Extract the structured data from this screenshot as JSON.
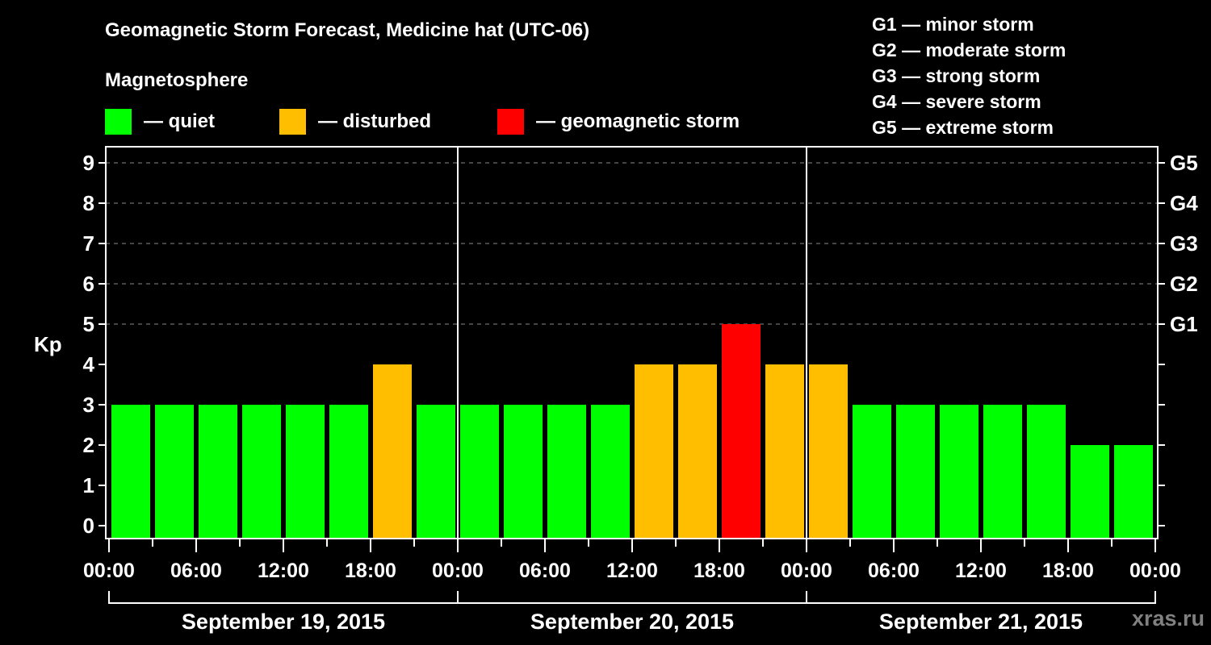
{
  "header": {
    "title": "Geomagnetic Storm Forecast, Medicine hat (UTC-06)",
    "subtitle": "Magnetosphere"
  },
  "legend": {
    "items": [
      {
        "label": "— quiet",
        "color": "#00ff00"
      },
      {
        "label": "— disturbed",
        "color": "#ffbf00"
      },
      {
        "label": "— geomagnetic storm",
        "color": "#ff0000"
      }
    ]
  },
  "storm_scale": [
    "G1 — minor storm",
    "G2 — moderate storm",
    "G3 — strong storm",
    "G4 — severe storm",
    "G5 — extreme storm"
  ],
  "watermark": "xras.ru",
  "chart_data": {
    "type": "bar",
    "title": "Geomagnetic Storm Forecast, Medicine hat (UTC-06)",
    "subtitle": "Magnetosphere",
    "xlabel": "",
    "ylabel": "Kp",
    "ylim": [
      0,
      9
    ],
    "yticks": [
      0,
      1,
      2,
      3,
      4,
      5,
      6,
      7,
      8,
      9
    ],
    "y2_ticks": [
      {
        "kp": 5,
        "label": "G1"
      },
      {
        "kp": 6,
        "label": "G2"
      },
      {
        "kp": 7,
        "label": "G3"
      },
      {
        "kp": 8,
        "label": "G4"
      },
      {
        "kp": 9,
        "label": "G5"
      }
    ],
    "grid": {
      "horizontal_dashed_at": [
        5,
        6,
        7,
        8,
        9
      ]
    },
    "interval_hours": 3,
    "days": [
      "September 19, 2015",
      "September 20, 2015",
      "September 21, 2015"
    ],
    "x_tick_labels": [
      "00:00",
      "06:00",
      "12:00",
      "18:00",
      "00:00",
      "06:00",
      "12:00",
      "18:00",
      "00:00",
      "06:00",
      "12:00",
      "18:00",
      "00:00"
    ],
    "categories": [
      "Sep 19 00:00",
      "Sep 19 03:00",
      "Sep 19 06:00",
      "Sep 19 09:00",
      "Sep 19 12:00",
      "Sep 19 15:00",
      "Sep 19 18:00",
      "Sep 19 21:00",
      "Sep 20 00:00",
      "Sep 20 03:00",
      "Sep 20 06:00",
      "Sep 20 09:00",
      "Sep 20 12:00",
      "Sep 20 15:00",
      "Sep 20 18:00",
      "Sep 20 21:00",
      "Sep 21 00:00",
      "Sep 21 03:00",
      "Sep 21 06:00",
      "Sep 21 09:00",
      "Sep 21 12:00",
      "Sep 21 15:00",
      "Sep 21 18:00",
      "Sep 21 21:00"
    ],
    "values": [
      3,
      3,
      3,
      3,
      3,
      3,
      4,
      3,
      3,
      3,
      3,
      3,
      4,
      4,
      5,
      4,
      4,
      3,
      3,
      3,
      3,
      3,
      2,
      2
    ],
    "color_rule": {
      "quiet": "Kp <= 3 → #00ff00",
      "disturbed": "Kp == 4 → #ffbf00",
      "storm": "Kp >= 5 → #ff0000"
    },
    "legend": [
      "quiet",
      "disturbed",
      "geomagnetic storm"
    ],
    "legend_position": "top"
  }
}
